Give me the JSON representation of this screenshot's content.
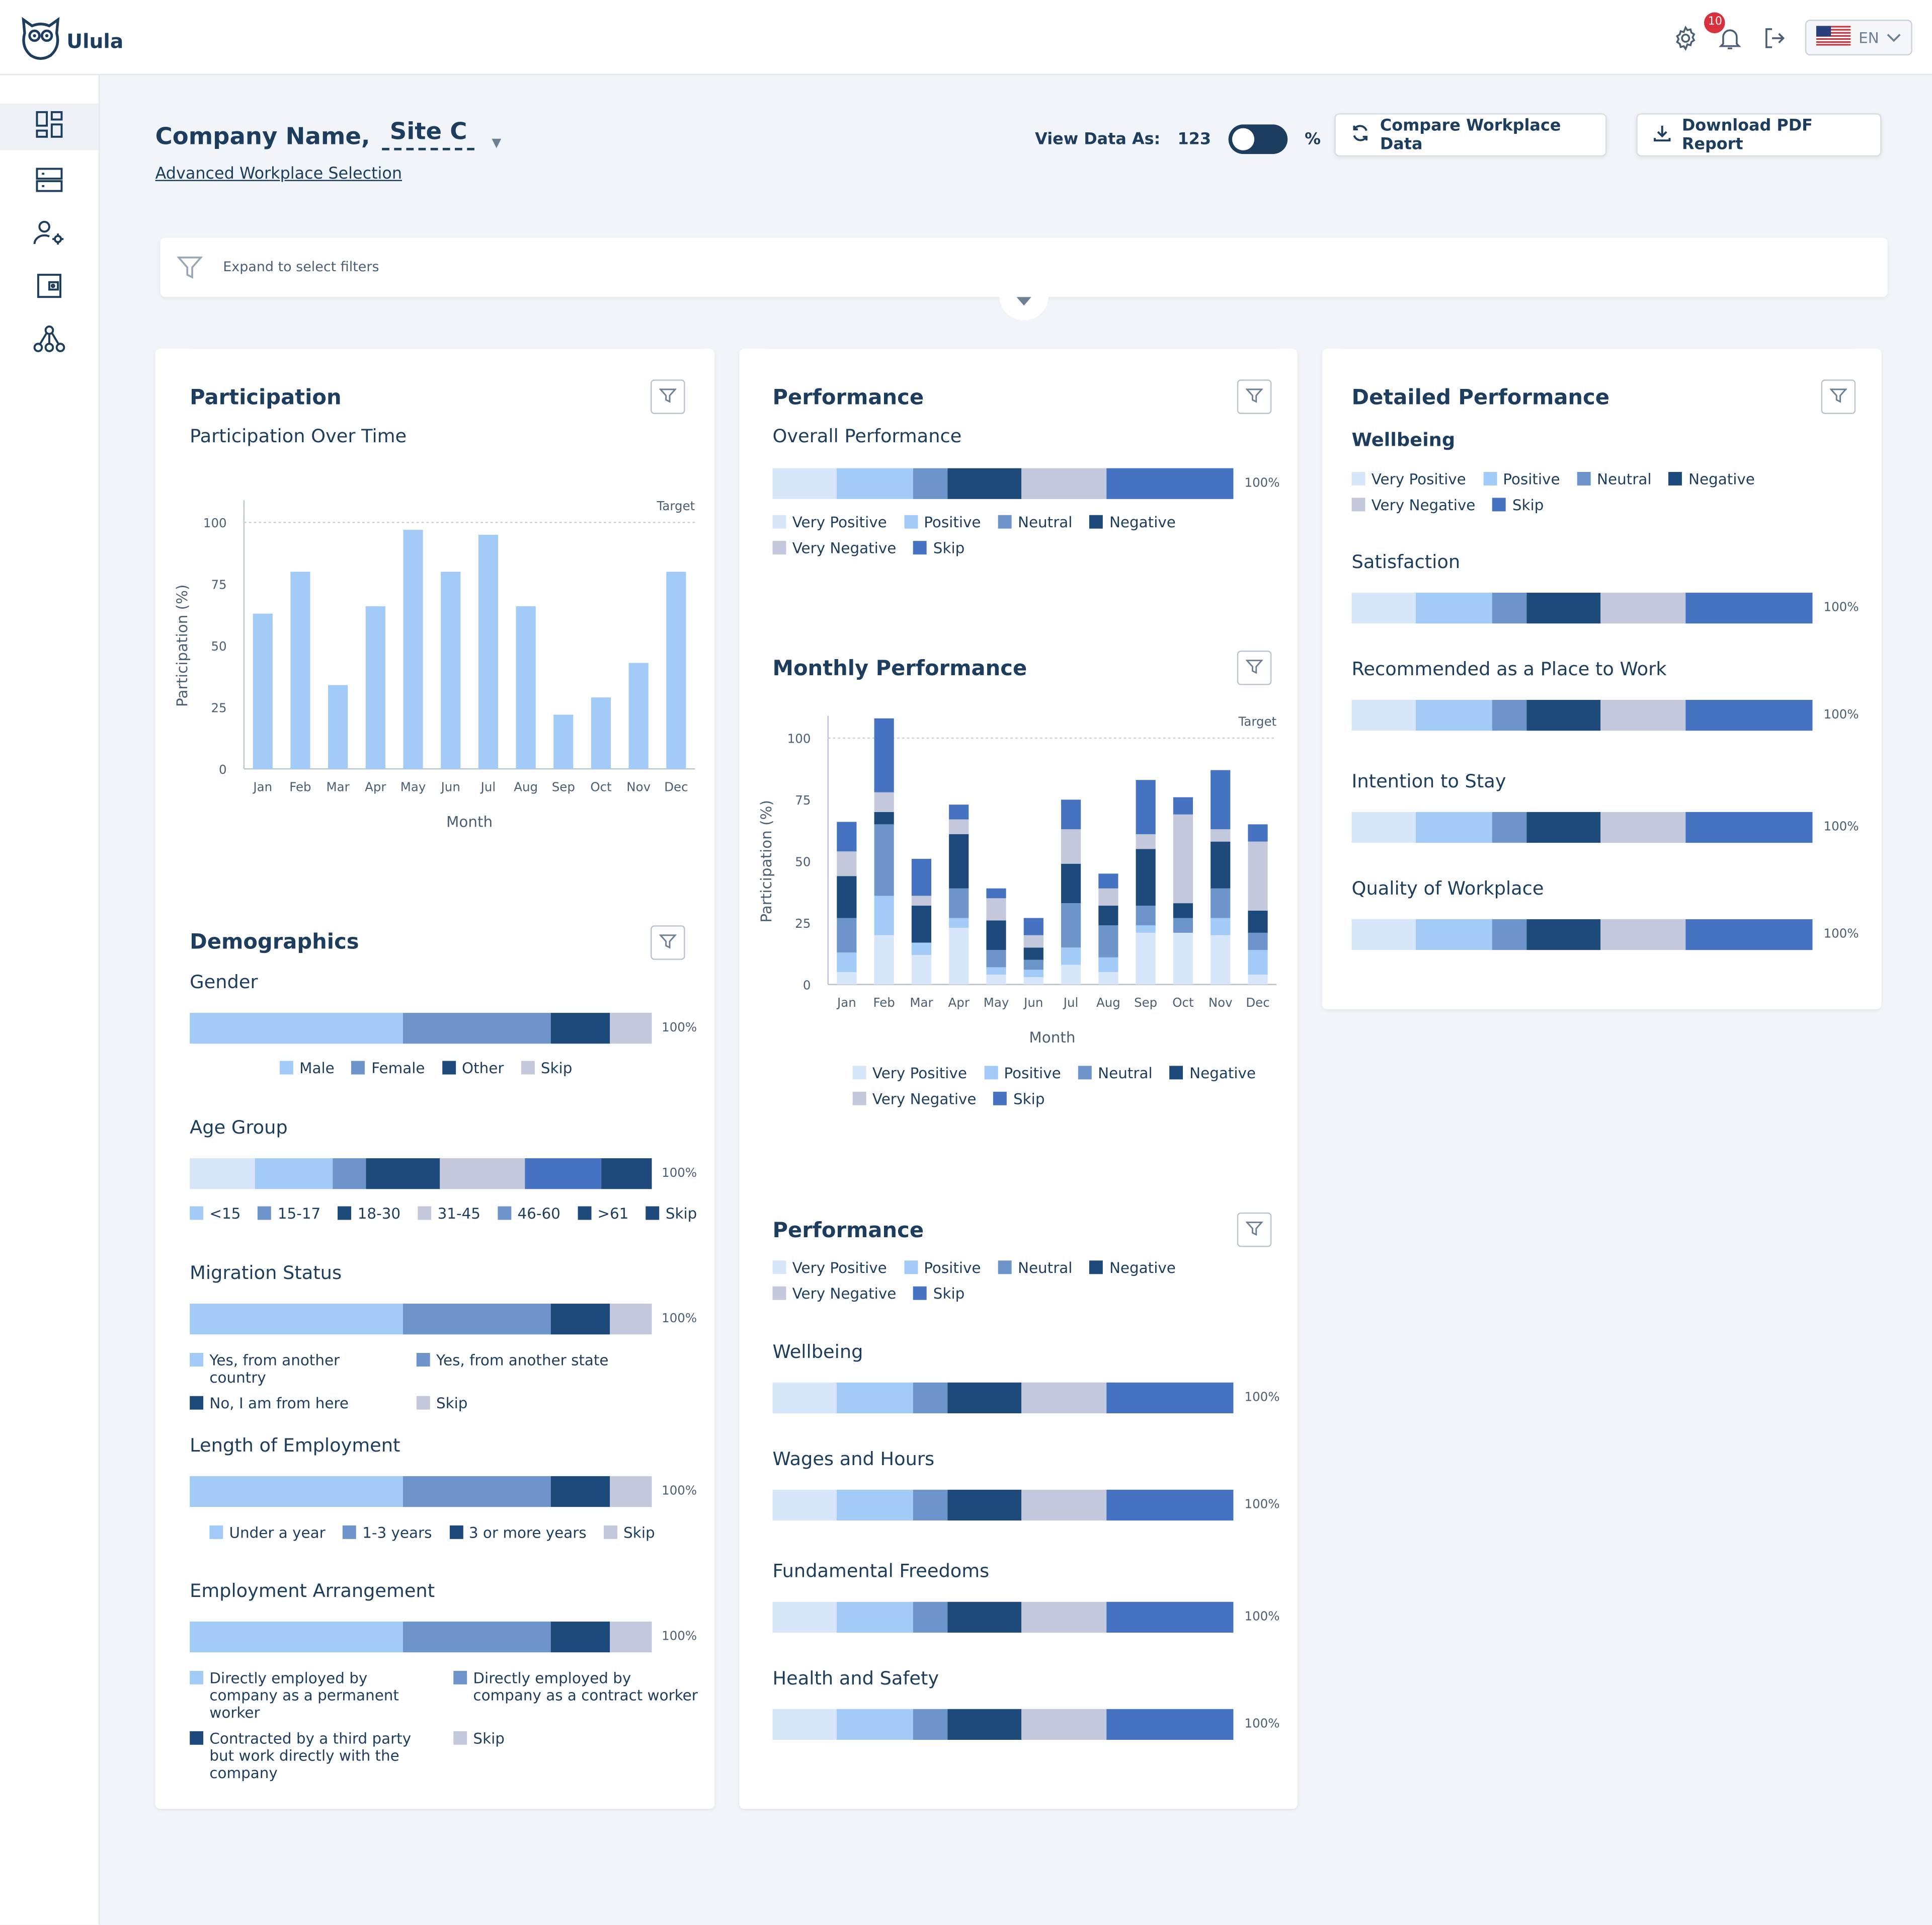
{
  "app": {
    "name": "Ulula"
  },
  "topbar": {
    "notifications_count": "10",
    "language": "EN"
  },
  "sidebar": {
    "items": [
      "dashboard",
      "data",
      "user-settings",
      "wallet",
      "network"
    ]
  },
  "header": {
    "company_label": "Company Name,",
    "site_value": "Site C",
    "advanced_link": "Advanced Workplace Selection",
    "view_as_label": "View Data As:",
    "view_as_count": "123",
    "view_as_percent": "%",
    "compare_button": "Compare Workplace Data",
    "download_button": "Download PDF Report"
  },
  "filters": {
    "expand_label": "Expand to select filters"
  },
  "colors": {
    "very_positive": "#d8e6fb",
    "positive": "#a3cbf8",
    "neutral": "#6d95cc",
    "negative": "#1d4a7b",
    "very_negative": "#c3c8dd",
    "skip": "#4573c1"
  },
  "participation": {
    "title": "Participation",
    "subtitle": "Participation Over Time",
    "chart_data": {
      "type": "bar",
      "categories": [
        "Jan",
        "Feb",
        "Mar",
        "Apr",
        "May",
        "Jun",
        "Jul",
        "Aug",
        "Sep",
        "Oct",
        "Nov",
        "Dec"
      ],
      "values": [
        63,
        80,
        34,
        66,
        97,
        80,
        95,
        66,
        22,
        29,
        43,
        80
      ],
      "ylabel": "Participation (%)",
      "xlabel": "Month",
      "ylim": [
        0,
        100
      ],
      "yticks": [
        "0",
        "25",
        "50",
        "75",
        "100"
      ],
      "target_label": "Target",
      "color": "#a3cbf8"
    }
  },
  "performance_overview": {
    "title": "Performance",
    "subtitle": "Overall Performance",
    "bar_segments": [
      14,
      16.5,
      7.5,
      16,
      18.5,
      27.5
    ],
    "pct_label": "100%",
    "legend": [
      "Very Positive",
      "Positive",
      "Neutral",
      "Negative",
      "Very Negative",
      "Skip"
    ]
  },
  "monthly_performance": {
    "title": "Monthly Performance",
    "chart_data": {
      "type": "bar",
      "stacked": true,
      "categories": [
        "Jan",
        "Feb",
        "Mar",
        "Apr",
        "May",
        "Jun",
        "Jul",
        "Aug",
        "Sep",
        "Oct",
        "Nov",
        "Dec"
      ],
      "series": [
        {
          "name": "Very Positive",
          "values": [
            5,
            20,
            12,
            23,
            4,
            3,
            8,
            5,
            21,
            21,
            20,
            4
          ]
        },
        {
          "name": "Positive",
          "values": [
            8,
            16,
            5,
            4,
            3,
            3,
            7,
            6,
            3,
            0,
            7,
            10
          ]
        },
        {
          "name": "Neutral",
          "values": [
            14,
            29,
            0,
            12,
            7,
            4,
            18,
            13,
            8,
            6,
            12,
            7
          ]
        },
        {
          "name": "Negative",
          "values": [
            17,
            5,
            15,
            22,
            12,
            5,
            16,
            8,
            23,
            6,
            19,
            9
          ]
        },
        {
          "name": "Very Negative",
          "values": [
            10,
            8,
            4,
            6,
            9,
            5,
            14,
            7,
            6,
            36,
            5,
            28
          ]
        },
        {
          "name": "Skip",
          "values": [
            12,
            30,
            15,
            6,
            4,
            7,
            12,
            6,
            22,
            7,
            24,
            7
          ]
        }
      ],
      "ylabel": "Participation (%)",
      "xlabel": "Month",
      "ylim": [
        0,
        100
      ],
      "yticks": [
        "0",
        "25",
        "50",
        "75",
        "100"
      ],
      "target_label": "Target"
    },
    "legend": [
      "Very Positive",
      "Positive",
      "Neutral",
      "Negative",
      "Very Negative",
      "Skip"
    ]
  },
  "performance_topics": {
    "title": "Performance",
    "legend": [
      "Very Positive",
      "Positive",
      "Neutral",
      "Negative",
      "Very Negative",
      "Skip"
    ],
    "items": [
      {
        "label": "Wellbeing",
        "pct": "100%"
      },
      {
        "label": "Wages and Hours",
        "pct": "100%"
      },
      {
        "label": "Fundamental Freedoms",
        "pct": "100%"
      },
      {
        "label": "Health and Safety",
        "pct": "100%"
      }
    ],
    "bar_segments": [
      14,
      16.5,
      7.5,
      16,
      18.5,
      27.5
    ]
  },
  "detailed_performance": {
    "title": "Detailed Performance",
    "subtitle": "Wellbeing",
    "legend": [
      "Very Positive",
      "Positive",
      "Neutral",
      "Negative",
      "Very Negative",
      "Skip"
    ],
    "items": [
      {
        "label": "Satisfaction",
        "pct": "100%"
      },
      {
        "label": "Recommended as a Place to Work",
        "pct": "100%"
      },
      {
        "label": "Intention to Stay",
        "pct": "100%"
      },
      {
        "label": "Quality of Workplace",
        "pct": "100%"
      }
    ],
    "bar_segments": [
      14,
      16.5,
      7.5,
      16,
      18.5,
      27.5
    ]
  },
  "demographics": {
    "title": "Demographics",
    "gender": {
      "label": "Gender",
      "segments": [
        46,
        32,
        13,
        9
      ],
      "pct": "100%",
      "legend": [
        "Male",
        "Female",
        "Other",
        "Skip"
      ]
    },
    "age": {
      "label": "Age Group",
      "segments": [
        14,
        17,
        7,
        16,
        18.5,
        16.5,
        11
      ],
      "pct": "100%",
      "legend": [
        "<15",
        "15-17",
        "18-30",
        "31-45",
        "46-60",
        ">61",
        "Skip"
      ]
    },
    "migration": {
      "label": "Migration Status",
      "segments": [
        46,
        32,
        13,
        9
      ],
      "pct": "100%",
      "legend": [
        "Yes, from another country",
        "Yes, from another state",
        "No, I am from here",
        "Skip"
      ]
    },
    "length": {
      "label": "Length of Employment",
      "segments": [
        46,
        32,
        13,
        9
      ],
      "pct": "100%",
      "legend": [
        "Under a year",
        "1-3 years",
        "3 or more years",
        "Skip"
      ]
    },
    "arrangement": {
      "label": "Employment Arrangement",
      "segments": [
        46,
        32,
        13,
        9
      ],
      "pct": "100%",
      "legend": [
        "Directly employed by company as a permanent worker",
        "Directly employed by company as a contract worker",
        "Contracted by a third party but work directly with the company",
        "Skip"
      ]
    }
  }
}
